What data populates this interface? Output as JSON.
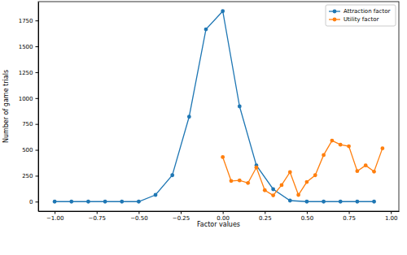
{
  "chart_data": {
    "type": "line",
    "x_label": "Factor values",
    "y_label": "Number of game trials",
    "xlim": [
      -1.0975,
      1.0475
    ],
    "ylim": [
      -92,
      1932
    ],
    "xticks": [
      {
        "value": -1,
        "label": "−1.00"
      },
      {
        "value": -0.75,
        "label": "−0.75"
      },
      {
        "value": -0.5,
        "label": "−0.50"
      },
      {
        "value": -0.25,
        "label": "−0.25"
      },
      {
        "value": 0,
        "label": "0.00"
      },
      {
        "value": 0.25,
        "label": "0.25"
      },
      {
        "value": 0.5,
        "label": "0.50"
      },
      {
        "value": 0.75,
        "label": "0.75"
      },
      {
        "value": 1,
        "label": "1.00"
      }
    ],
    "yticks": [
      0,
      250,
      500,
      750,
      1000,
      1250,
      1500,
      1750
    ],
    "legend": "upper right",
    "marker": "circle",
    "series": [
      {
        "name": "Attraction factor",
        "color": "#1f77b4",
        "x": [
          -1.0,
          -0.9,
          -0.8,
          -0.7,
          -0.6,
          -0.5,
          -0.4,
          -0.3,
          -0.2,
          -0.1,
          0.0,
          0.1,
          0.2,
          0.3,
          0.4,
          0.5,
          0.6,
          0.7,
          0.8,
          0.9
        ],
        "values": [
          0,
          0,
          0,
          0,
          0,
          0,
          65,
          255,
          820,
          1665,
          1840,
          920,
          350,
          120,
          10,
          0,
          0,
          0,
          0,
          0
        ]
      },
      {
        "name": "Utility factor",
        "color": "#ff7f0e",
        "x": [
          0.0,
          0.05,
          0.1,
          0.15,
          0.2,
          0.25,
          0.3,
          0.35,
          0.4,
          0.45,
          0.5,
          0.55,
          0.6,
          0.65,
          0.7,
          0.75,
          0.8,
          0.85,
          0.9,
          0.95
        ],
        "values": [
          430,
          200,
          205,
          180,
          330,
          110,
          60,
          160,
          285,
          65,
          190,
          255,
          450,
          590,
          550,
          535,
          295,
          350,
          290,
          515
        ]
      }
    ]
  }
}
